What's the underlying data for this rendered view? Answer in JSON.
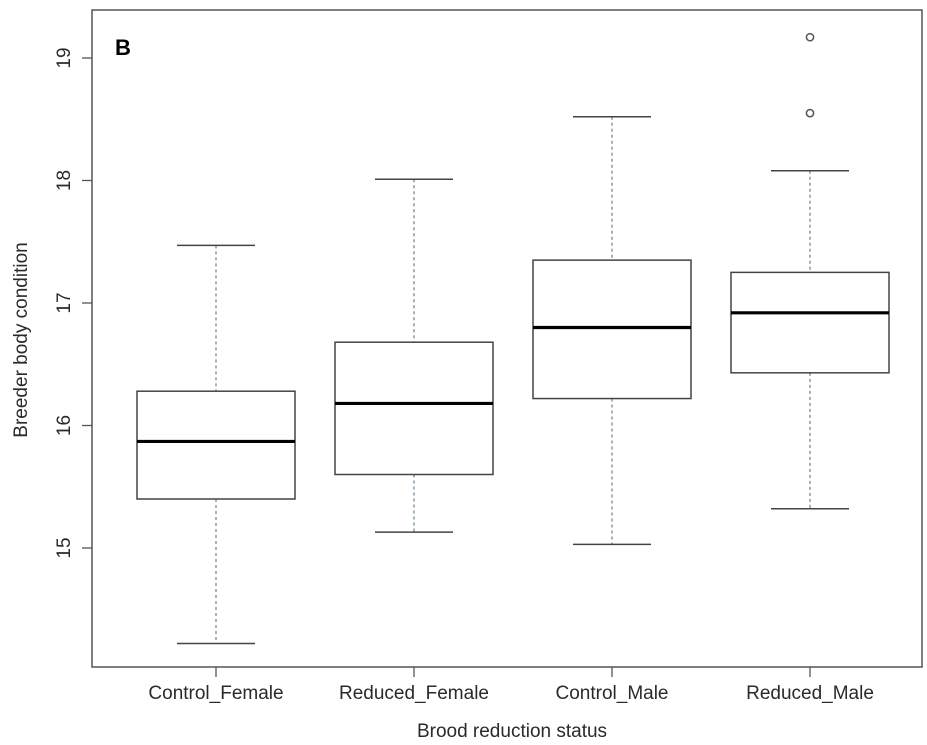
{
  "panel_label": "B",
  "chart_data": {
    "type": "box",
    "xlabel": "Brood reduction status",
    "ylabel": "Breeder body condition",
    "ylim": [
      14.0,
      19.4
    ],
    "yticks": [
      15,
      16,
      17,
      18,
      19
    ],
    "grid": false,
    "categories": [
      "Control_Female",
      "Reduced_Female",
      "Control_Male",
      "Reduced_Male"
    ],
    "boxes": [
      {
        "category": "Control_Female",
        "whisker_low": 14.22,
        "q1": 15.4,
        "median": 15.87,
        "q3": 16.28,
        "whisker_high": 17.47,
        "outliers": []
      },
      {
        "category": "Reduced_Female",
        "whisker_low": 15.13,
        "q1": 15.6,
        "median": 16.18,
        "q3": 16.68,
        "whisker_high": 18.01,
        "outliers": []
      },
      {
        "category": "Control_Male",
        "whisker_low": 15.03,
        "q1": 16.22,
        "median": 16.8,
        "q3": 17.35,
        "whisker_high": 18.52,
        "outliers": []
      },
      {
        "category": "Reduced_Male",
        "whisker_low": 15.32,
        "q1": 16.43,
        "median": 16.92,
        "q3": 17.25,
        "whisker_high": 18.08,
        "outliers": [
          18.55,
          19.17
        ]
      }
    ],
    "colors": {
      "frame": "#555555",
      "box": "#444444",
      "median": "#000000",
      "whisker": "#6f8a9c",
      "outlier": "#555555"
    }
  }
}
